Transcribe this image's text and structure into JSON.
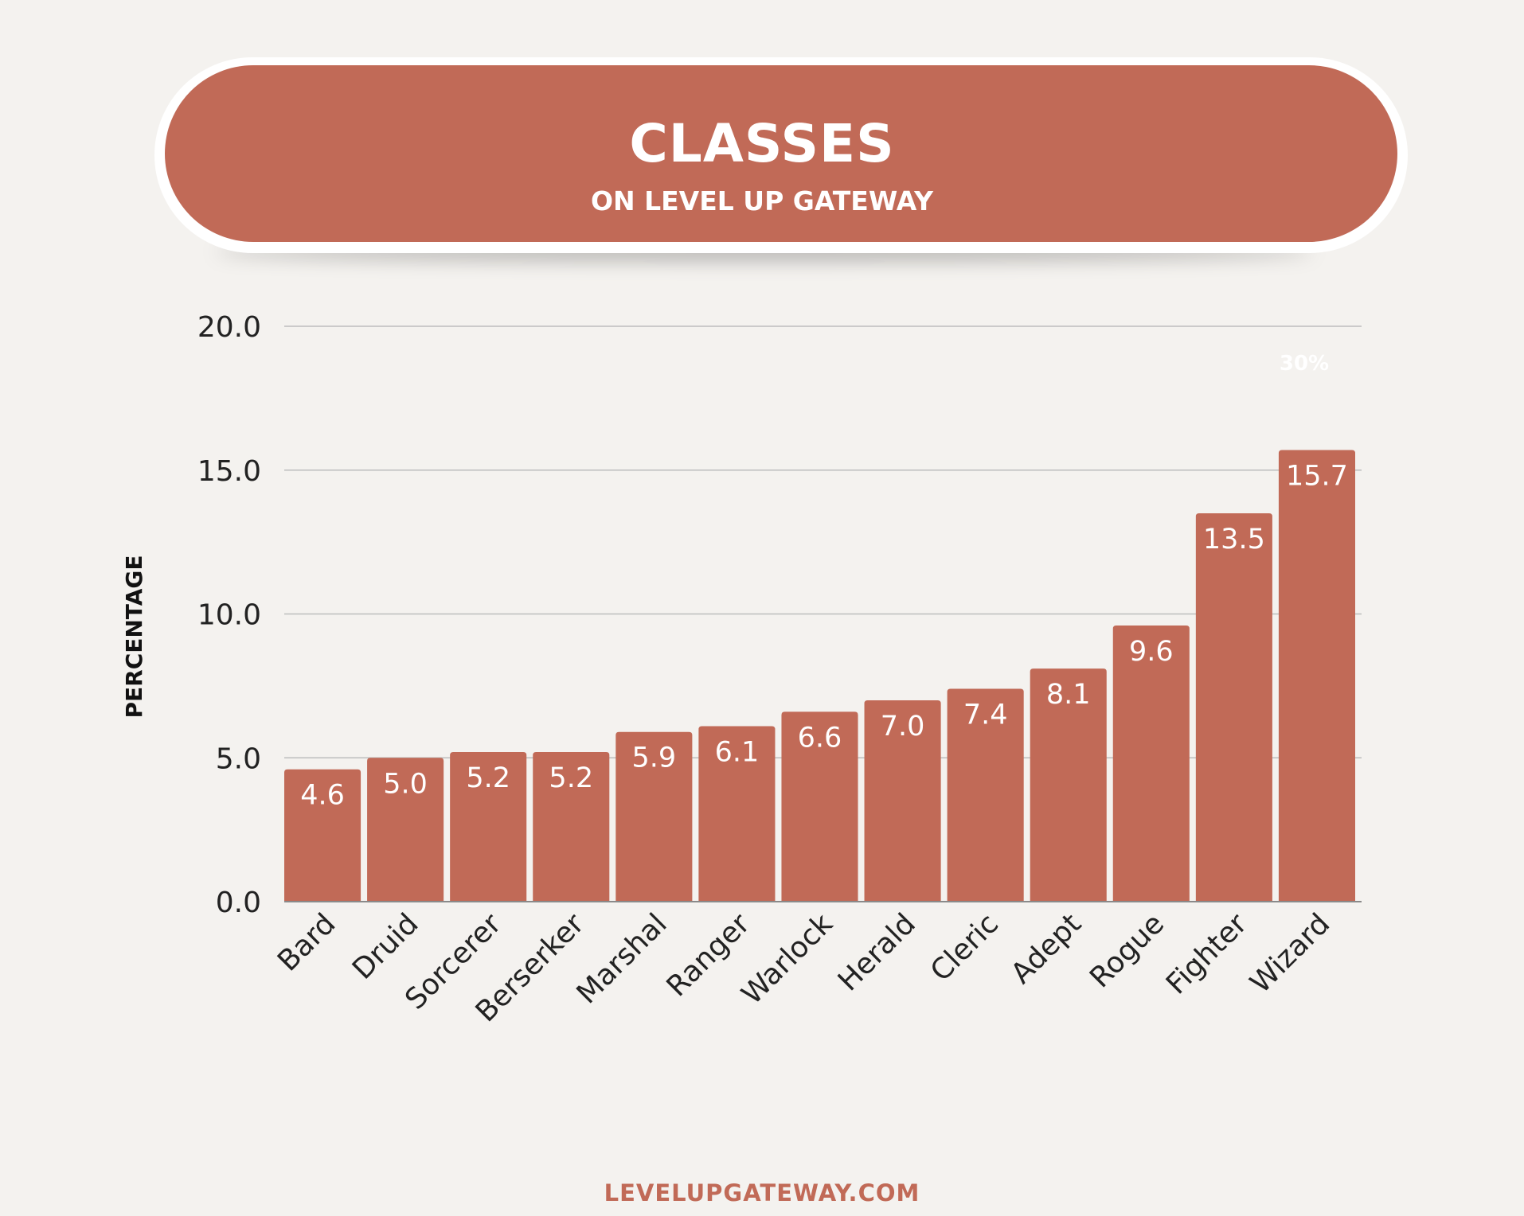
{
  "header": {
    "title": "CLASSES",
    "subtitle": "ON LEVEL UP GATEWAY"
  },
  "footer": {
    "text": "LEVELUPGATEWAY.COM"
  },
  "colors": {
    "bar": "#c16a57",
    "background": "#f4f2ef",
    "grid": "#bdbdbd",
    "text": "#222222"
  },
  "chart_data": {
    "type": "bar",
    "categories": [
      "Bard",
      "Druid",
      "Sorcerer",
      "Berserker",
      "Marshal",
      "Ranger",
      "Warlock",
      "Herald",
      "Cleric",
      "Adept",
      "Rogue",
      "Fighter",
      "Wizard"
    ],
    "values": [
      4.6,
      5.0,
      5.2,
      5.2,
      5.9,
      6.1,
      6.6,
      7.0,
      7.4,
      8.1,
      9.6,
      13.5,
      15.7
    ],
    "data_labels": [
      "4.6",
      "5.0",
      "5.2",
      "5.2",
      "5.9",
      "6.1",
      "6.6",
      "7.0",
      "7.4",
      "8.1",
      "9.6",
      "13.5",
      "15.7"
    ],
    "ylabel": "PERCENTAGE",
    "ylim": [
      0,
      20
    ],
    "yticks": [
      "0.0",
      "5.0",
      "10.0",
      "15.0",
      "20.0"
    ],
    "annotation": "30%",
    "grid": true
  }
}
